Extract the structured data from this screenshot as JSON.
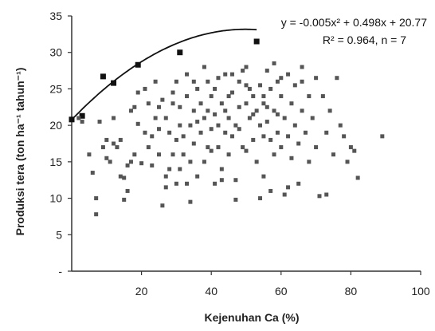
{
  "chart_data": {
    "type": "scatter",
    "xlabel": "Kejenuhan Ca (%)",
    "ylabel": "Produksi tera (ton ha⁻¹ tahun⁻¹)",
    "xlim": [
      0,
      100
    ],
    "ylim": [
      0,
      35
    ],
    "x_ticks": [
      "20",
      "40",
      "60",
      "80",
      "100"
    ],
    "y_ticks": [
      "-",
      "5",
      "10",
      "15",
      "20",
      "25",
      "30",
      "35"
    ],
    "grid": false,
    "annotations": {
      "equation": "y = -0.005x² + 0.498x + 20.77",
      "stats": "R² = 0.964, n = 7"
    },
    "fit_curve": {
      "a": -0.005,
      "b": 0.498,
      "c": 20.77,
      "x_range": [
        0,
        53
      ]
    },
    "series": [
      {
        "role": "boundary",
        "points": [
          [
            0,
            20.8
          ],
          [
            3,
            21.3
          ],
          [
            9,
            26.7
          ],
          [
            12,
            25.8
          ],
          [
            19,
            28.3
          ],
          [
            31,
            30
          ],
          [
            53,
            31.5
          ]
        ]
      },
      {
        "role": "observations",
        "points": [
          [
            2,
            21
          ],
          [
            5,
            16
          ],
          [
            6,
            13.5
          ],
          [
            7,
            7.8
          ],
          [
            7,
            10
          ],
          [
            8,
            20.5
          ],
          [
            9,
            17
          ],
          [
            10,
            18
          ],
          [
            11,
            15
          ],
          [
            12,
            17.5
          ],
          [
            12,
            21
          ],
          [
            13,
            17
          ],
          [
            14,
            18
          ],
          [
            15,
            9.8
          ],
          [
            15,
            12.8
          ],
          [
            16,
            14.5
          ],
          [
            16,
            11
          ],
          [
            17,
            15
          ],
          [
            17,
            22
          ],
          [
            18,
            22.5
          ],
          [
            19,
            20.2
          ],
          [
            19,
            24.5
          ],
          [
            20,
            14.8
          ],
          [
            21,
            25
          ],
          [
            21,
            19
          ],
          [
            22,
            17
          ],
          [
            22,
            23
          ],
          [
            23,
            14.5
          ],
          [
            23,
            18.5
          ],
          [
            24,
            21
          ],
          [
            25,
            16
          ],
          [
            25,
            19.5
          ],
          [
            26,
            23.5
          ],
          [
            26,
            9
          ],
          [
            27,
            13
          ],
          [
            27,
            21
          ],
          [
            28,
            14
          ],
          [
            28,
            19
          ],
          [
            29,
            16
          ],
          [
            29,
            23
          ],
          [
            30,
            18
          ],
          [
            30,
            12
          ],
          [
            30,
            26
          ],
          [
            31,
            14
          ],
          [
            31,
            20
          ],
          [
            31,
            22.5
          ],
          [
            32,
            16
          ],
          [
            32,
            18.5
          ],
          [
            33,
            12
          ],
          [
            33,
            24
          ],
          [
            34,
            20
          ],
          [
            34,
            15
          ],
          [
            35,
            17.5
          ],
          [
            35,
            22
          ],
          [
            36,
            25
          ],
          [
            36,
            13
          ],
          [
            37,
            19
          ],
          [
            37,
            23
          ],
          [
            38,
            15
          ],
          [
            38,
            21
          ],
          [
            39,
            26
          ],
          [
            39,
            17
          ],
          [
            40,
            19.5
          ],
          [
            40,
            24
          ],
          [
            41,
            12
          ],
          [
            41,
            21.5
          ],
          [
            42,
            17
          ],
          [
            42,
            26.5
          ],
          [
            43,
            23
          ],
          [
            43,
            14
          ],
          [
            44,
            19
          ],
          [
            44,
            27
          ],
          [
            45,
            21
          ],
          [
            45,
            16
          ],
          [
            46,
            24.5
          ],
          [
            46,
            18.5
          ],
          [
            47,
            20
          ],
          [
            47,
            12.5
          ],
          [
            48,
            26
          ],
          [
            48,
            22.5
          ],
          [
            49,
            17
          ],
          [
            49,
            27.5
          ],
          [
            50,
            23
          ],
          [
            50,
            16.5
          ],
          [
            51,
            21
          ],
          [
            51,
            25
          ],
          [
            52,
            18
          ],
          [
            52,
            24
          ],
          [
            53,
            15
          ],
          [
            53,
            22
          ],
          [
            54,
            20
          ],
          [
            54,
            25.5
          ],
          [
            55,
            13
          ],
          [
            55,
            18.5
          ],
          [
            55,
            23
          ],
          [
            56,
            27.5
          ],
          [
            56,
            20.5
          ],
          [
            57,
            25
          ],
          [
            57,
            11
          ],
          [
            58,
            16
          ],
          [
            58,
            22
          ],
          [
            59,
            19
          ],
          [
            59,
            26
          ],
          [
            60,
            17
          ],
          [
            60,
            24
          ],
          [
            61,
            21
          ],
          [
            61,
            10.5
          ],
          [
            62,
            18.5
          ],
          [
            62,
            27
          ],
          [
            63,
            23
          ],
          [
            63,
            15.5
          ],
          [
            64,
            20
          ],
          [
            64,
            25.5
          ],
          [
            65,
            17.5
          ],
          [
            65,
            12
          ],
          [
            66,
            22
          ],
          [
            66,
            26
          ],
          [
            67,
            19
          ],
          [
            68,
            24
          ],
          [
            68,
            15
          ],
          [
            69,
            21
          ],
          [
            70,
            17
          ],
          [
            70,
            26.5
          ],
          [
            71,
            10.3
          ],
          [
            72,
            24
          ],
          [
            73,
            10.5
          ],
          [
            73,
            19
          ],
          [
            74,
            22
          ],
          [
            75,
            16
          ],
          [
            76,
            26.5
          ],
          [
            77,
            20
          ],
          [
            78,
            18.5
          ],
          [
            79,
            15
          ],
          [
            80,
            17
          ],
          [
            81,
            16.5
          ],
          [
            82,
            12.8
          ],
          [
            89,
            18.5
          ],
          [
            3,
            20.5
          ],
          [
            10,
            15.5
          ],
          [
            14,
            13
          ],
          [
            18,
            16
          ],
          [
            24,
            26
          ],
          [
            27,
            11.5
          ],
          [
            34,
            9.5
          ],
          [
            38,
            28
          ],
          [
            43,
            12.5
          ],
          [
            47,
            9.8
          ],
          [
            54,
            10
          ],
          [
            58,
            28.5
          ],
          [
            62,
            11.5
          ],
          [
            66,
            28
          ],
          [
            45,
            24
          ],
          [
            50,
            25.5
          ],
          [
            55,
            24
          ],
          [
            60,
            26.5
          ],
          [
            39,
            22
          ],
          [
            41,
            25
          ],
          [
            44,
            22
          ],
          [
            48,
            19.5
          ],
          [
            52,
            21.5
          ],
          [
            56,
            22.5
          ],
          [
            46,
            27
          ],
          [
            50,
            28
          ],
          [
            57,
            18
          ],
          [
            59,
            21.5
          ],
          [
            42,
            20
          ],
          [
            36,
            20.5
          ],
          [
            35,
            26
          ],
          [
            40,
            16.5
          ],
          [
            29,
            24.5
          ],
          [
            33,
            27
          ],
          [
            25,
            22.5
          ]
        ]
      }
    ]
  }
}
